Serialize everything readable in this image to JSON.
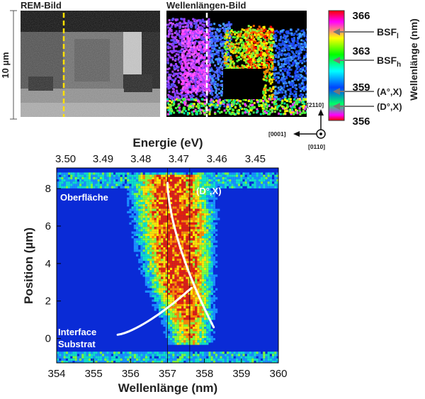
{
  "rem_panel": {
    "title": "REM-Bild"
  },
  "wl_panel": {
    "title": "Wellenlängen-Bild"
  },
  "scalebar": {
    "label": "10 µm"
  },
  "colorbar": {
    "ticks": [
      366,
      363,
      359,
      356
    ],
    "title": "Wellenlänge  (nm)",
    "markers": [
      {
        "label": "BSF",
        "sub": "l"
      },
      {
        "label": "BSF",
        "sub": "h"
      },
      {
        "label": "(A°,X)",
        "sub": ""
      },
      {
        "label": "(D°,X)",
        "sub": ""
      }
    ]
  },
  "orientation": {
    "up": "[2110]",
    "left": "[0001]",
    "out": "[0110]"
  },
  "main_plot": {
    "top_axis_title": "Energie (eV)",
    "top_ticks": [
      "3.50",
      "3.49",
      "3.48",
      "3.47",
      "3.46",
      "3.45"
    ],
    "xlabel": "Wellenlänge (nm)",
    "ylabel": "Position (µm)",
    "x_ticks": [
      "354",
      "355",
      "356",
      "357",
      "358",
      "359",
      "360"
    ],
    "y_ticks": [
      "0",
      "2",
      "4",
      "6",
      "8"
    ],
    "xlim": [
      354,
      360
    ],
    "ylim": [
      -1.3,
      9.1
    ],
    "label_surface": "Oberfläche",
    "label_dx": "(D°,X)",
    "label_interface_1": "Interface",
    "label_interface_2": "Substrat",
    "ref_lines_nm": [
      357.0,
      357.6
    ]
  }
}
